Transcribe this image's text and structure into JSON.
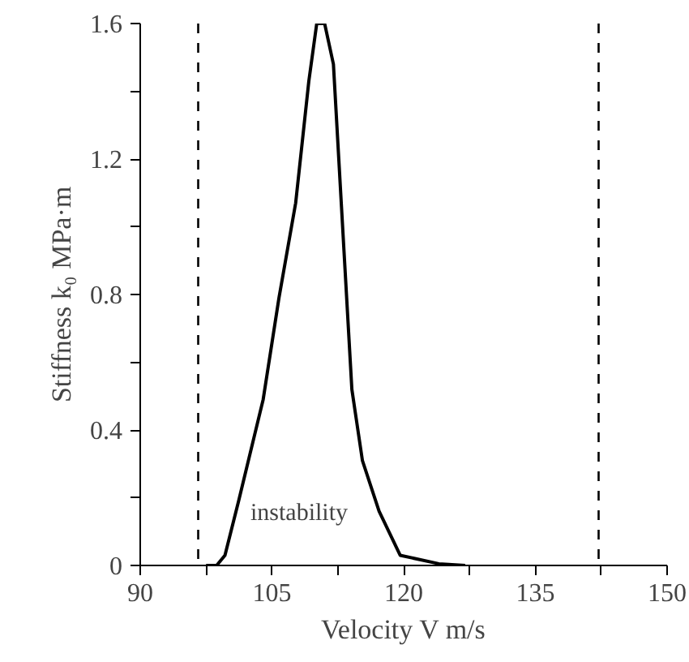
{
  "chart_data": {
    "type": "line",
    "xlabel": "Velocity V m/s",
    "ylabel": "Stiffness k₀ MPa·m",
    "series": [
      {
        "color": "#000000",
        "x": [
          97.5,
          98.7,
          99.65,
          101.2,
          104.0,
          105.8,
          107.7,
          109.2,
          110.1,
          111.0,
          112.0,
          113.2,
          114.1,
          115.3,
          117.2,
          119.6,
          124.0,
          127.0
        ],
        "values": [
          0,
          0,
          0.03,
          0.19,
          0.49,
          0.79,
          1.07,
          1.43,
          1.6,
          1.6,
          1.48,
          0.93,
          0.52,
          0.31,
          0.16,
          0.03,
          0.005,
          0
        ]
      }
    ],
    "xlim": [
      90,
      150
    ],
    "xticks": [
      90,
      {
        "value": 97.5,
        "label": null
      },
      105,
      {
        "value": 112.5,
        "label": null
      },
      120,
      {
        "value": 127.5,
        "label": null
      },
      135,
      {
        "value": 142.5,
        "label": null
      },
      150
    ],
    "ylim": [
      0,
      1.6
    ],
    "yticks": [
      0,
      {
        "value": 0.2,
        "label": null
      },
      0.4,
      {
        "value": 0.6,
        "label": null
      },
      0.8,
      {
        "value": 1.0,
        "label": null
      },
      1.2,
      {
        "value": 1.4,
        "label": null
      },
      1.6
    ],
    "ref_lines": [
      {
        "axis": "x",
        "value": 96.6,
        "label": null,
        "color": "#000000",
        "line_style": "dashed"
      },
      {
        "axis": "x",
        "value": 142.2,
        "label": null,
        "color": "#000000",
        "line_style": "dashed"
      }
    ],
    "annotations": [
      "instability"
    ],
    "grid": false,
    "marker": "none",
    "line_style": "solid"
  }
}
